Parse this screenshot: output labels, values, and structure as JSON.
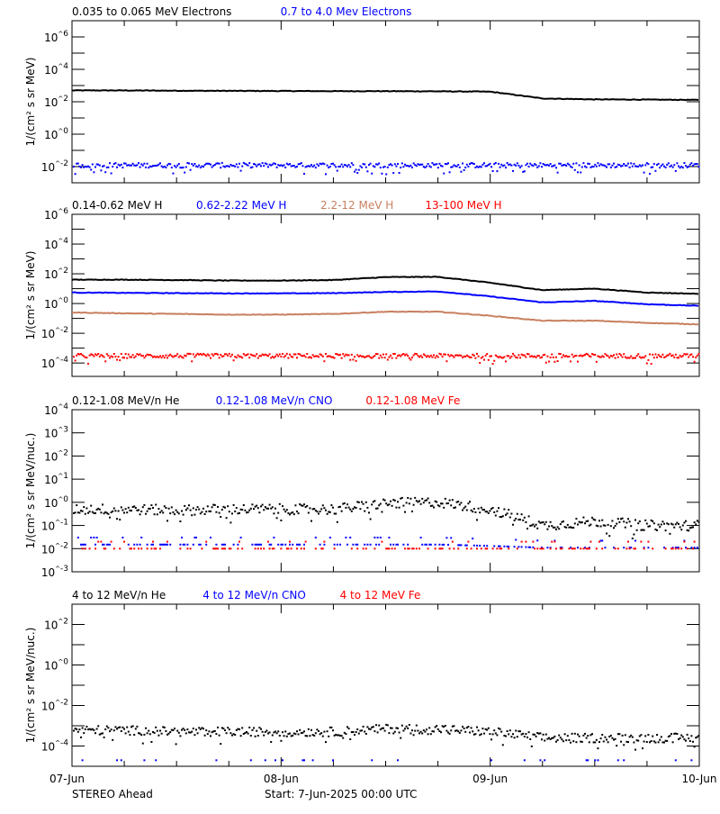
{
  "chart_data": [
    {
      "type": "line",
      "ylabel": "1/(cm² s sr MeV)",
      "ylim": [
        0.001,
        10000000
      ],
      "yscale": "log",
      "ytick_labels": [
        "10^-2",
        "10^0",
        "10^2",
        "10^4",
        "10^6"
      ],
      "legend_placement": "top-left",
      "series": [
        {
          "name": "0.035 to 0.065 MeV Electrons",
          "color": "#000000",
          "style": "line",
          "values": [
            500,
            500,
            480,
            470,
            460,
            450,
            450,
            440,
            420,
            160,
            140,
            135,
            130
          ]
        },
        {
          "name": "0.7 to 4.0 Mev Electrons",
          "color": "#0000ff",
          "style": "scatter",
          "values": [
            0.012,
            0.012,
            0.012,
            0.012,
            0.012,
            0.012,
            0.012,
            0.012,
            0.012,
            0.012,
            0.012,
            0.012,
            0.012
          ]
        }
      ]
    },
    {
      "type": "line",
      "ylabel": "1/(cm² s sr MeV)",
      "ylim": [
        1.26e-05,
        1000000
      ],
      "yscale": "log",
      "ytick_labels": [
        "10^-4",
        "10^-2",
        "10^0",
        "10^2",
        "10^4",
        "10^6"
      ],
      "legend_placement": "top-left",
      "series": [
        {
          "name": "0.14-0.62 MeV H",
          "color": "#000000",
          "style": "line",
          "values": [
            40,
            40,
            38,
            35,
            35,
            38,
            60,
            62,
            25,
            8,
            10,
            5.5,
            4.5
          ]
        },
        {
          "name": "0.62-2.22 MeV H",
          "color": "#0000ff",
          "style": "line",
          "values": [
            5.5,
            5.2,
            5,
            4.8,
            4.8,
            5,
            6,
            6.5,
            3,
            1.2,
            1.5,
            0.9,
            0.7
          ]
        },
        {
          "name": "2.2-12 MeV H",
          "color": "#c87f5f",
          "style": "line",
          "values": [
            0.25,
            0.22,
            0.2,
            0.18,
            0.18,
            0.2,
            0.28,
            0.28,
            0.15,
            0.07,
            0.07,
            0.05,
            0.04
          ]
        },
        {
          "name": "13-100 MeV H",
          "color": "#ff0000",
          "style": "scatter",
          "values": [
            0.0003,
            0.0003,
            0.0003,
            0.0003,
            0.0003,
            0.0003,
            0.0003,
            0.0003,
            0.0003,
            0.0003,
            0.0003,
            0.0003,
            0.0003
          ]
        }
      ]
    },
    {
      "type": "scatter",
      "ylabel": "1/(cm² s sr MeV/nuc.)",
      "ylim": [
        0.001,
        10000
      ],
      "yscale": "log",
      "ytick_labels": [
        "10^-3",
        "10^-2",
        "10^-1",
        "10^0",
        "10^1",
        "10^2",
        "10^3",
        "10^4"
      ],
      "legend_placement": "top-left",
      "series": [
        {
          "name": "0.12-1.08 MeV/n He",
          "color": "#000000",
          "style": "scatter",
          "values": [
            0.5,
            0.5,
            0.45,
            0.5,
            0.5,
            0.5,
            0.9,
            1.0,
            0.5,
            0.1,
            0.15,
            0.1,
            0.1
          ]
        },
        {
          "name": "0.12-1.08 MeV/n CNO",
          "color": "#0000ff",
          "style": "scatter",
          "values": [
            0.015,
            0.015,
            0.015,
            0.015,
            0.015,
            0.015,
            0.015,
            0.015,
            0.013,
            0.011,
            0.011,
            0.011,
            0.011
          ]
        },
        {
          "name": "0.12-1.08 MeV Fe",
          "color": "#ff0000",
          "style": "scatter",
          "values": [
            0.01,
            0.01,
            0.01,
            0.01,
            0.01,
            0.01,
            0.01,
            0.01,
            0.01,
            0.01,
            0.01,
            0.01,
            0.01
          ]
        }
      ]
    },
    {
      "type": "scatter",
      "ylabel": "1/(cm² s sr MeV/nuc.)",
      "ylim": [
        1e-05,
        1000
      ],
      "yscale": "log",
      "ytick_labels": [
        "10^-4",
        "10^-2",
        "10^0",
        "10^2"
      ],
      "legend_placement": "top-left",
      "series": [
        {
          "name": "4 to 12 MeV/n He",
          "color": "#000000",
          "style": "scatter",
          "values": [
            0.0006,
            0.0006,
            0.0005,
            0.0005,
            0.0005,
            0.0005,
            0.0007,
            0.0007,
            0.0005,
            0.00025,
            0.00025,
            0.00025,
            0.00025
          ]
        },
        {
          "name": "4 to 12 MeV/n CNO",
          "color": "#0000ff",
          "style": "scatter",
          "values": [
            1e-05,
            1e-05,
            1e-05,
            1e-05,
            1e-05,
            1e-05,
            1e-05,
            1e-05,
            1e-05,
            1e-05,
            1e-05,
            1e-05,
            1e-05
          ]
        },
        {
          "name": "4 to 12 MeV Fe",
          "color": "#ff0000",
          "style": "scatter",
          "values": []
        }
      ]
    }
  ],
  "x": [
    "2025-06-07 00:00",
    "2025-06-07 06:00",
    "2025-06-07 12:00",
    "2025-06-07 18:00",
    "2025-06-08 00:00",
    "2025-06-08 06:00",
    "2025-06-08 12:00",
    "2025-06-08 18:00",
    "2025-06-09 00:00",
    "2025-06-09 06:00",
    "2025-06-09 12:00",
    "2025-06-09 18:00",
    "2025-06-10 00:00"
  ],
  "xtick_labels": [
    "07-Jun",
    "08-Jun",
    "09-Jun",
    "10-Jun"
  ],
  "footer": {
    "spacecraft": "STEREO Ahead",
    "start": "Start:  7-Jun-2025 00:00 UTC"
  }
}
